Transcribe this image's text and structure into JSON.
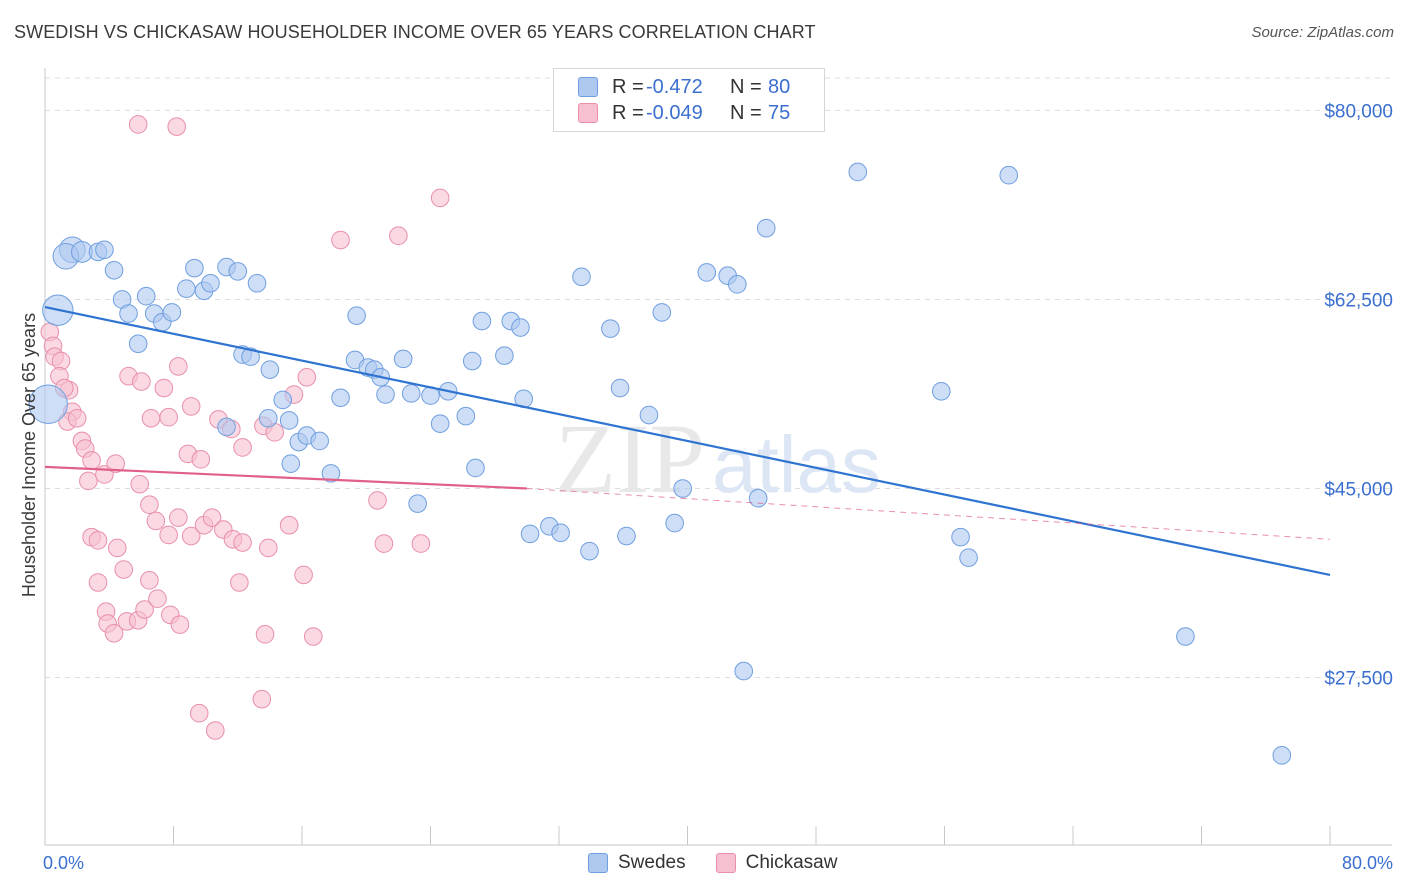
{
  "header": {
    "title": "SWEDISH VS CHICKASAW HOUSEHOLDER INCOME OVER 65 YEARS CORRELATION CHART",
    "source": "Source: ZipAtlas.com"
  },
  "watermark": {
    "part1": "ZIP",
    "part2": "atlas"
  },
  "legend": {
    "rows": [
      {
        "r_label": "R =",
        "r_value": "-0.472",
        "n_label": "N =",
        "n_value": "80"
      },
      {
        "r_label": "R =",
        "r_value": "-0.049",
        "n_label": "N =",
        "n_value": "75"
      }
    ],
    "series": [
      {
        "label": "Swedes"
      },
      {
        "label": "Chickasaw"
      }
    ]
  },
  "colors": {
    "blue_fill": "#aec8f0",
    "blue_stroke": "#6f9fe0",
    "blue_line": "#2f74d0",
    "pink_fill": "#f6c0d0",
    "pink_stroke": "#e98fab",
    "pink_line": "#e0608a",
    "axis_text": "#3a6fd0",
    "grid": "#dddddd"
  },
  "chart_data": {
    "type": "scatter",
    "title": "SWEDISH VS CHICKASAW HOUSEHOLDER INCOME OVER 65 YEARS CORRELATION CHART",
    "xlabel": "",
    "ylabel": "Householder Income Over 65 years",
    "xlim": [
      0,
      80
    ],
    "ylim": [
      12000,
      83000
    ],
    "x_tick_labels": [
      "0.0%",
      "80.0%"
    ],
    "y_ticks": [
      27500,
      45000,
      62500,
      80000
    ],
    "y_tick_labels": [
      "$27,500",
      "$45,000",
      "$62,500",
      "$80,000"
    ],
    "series": [
      {
        "name": "Swedes",
        "r": -0.472,
        "n": 80,
        "trend": {
          "x": [
            0,
            80
          ],
          "y": [
            61800,
            37000
          ]
        },
        "points": [
          [
            1.7,
            67100,
            1.6
          ],
          [
            1.3,
            66500,
            1.6
          ],
          [
            2.3,
            66900,
            1.3
          ],
          [
            3.3,
            66900,
            1.1
          ],
          [
            3.7,
            67100,
            1.1
          ],
          [
            4.3,
            65200,
            1.1
          ],
          [
            0.8,
            61500,
            1.9
          ],
          [
            0.2,
            52800,
            2.4
          ],
          [
            4.8,
            62500,
            1.1
          ],
          [
            5.2,
            61200,
            1.1
          ],
          [
            6.3,
            62800,
            1.1
          ],
          [
            6.8,
            61200,
            1.1
          ],
          [
            7.3,
            60400,
            1.1
          ],
          [
            7.9,
            61300,
            1.1
          ],
          [
            8.8,
            63500,
            1.1
          ],
          [
            9.3,
            65400,
            1.1
          ],
          [
            9.9,
            63300,
            1.1
          ],
          [
            10.3,
            64000,
            1.1
          ],
          [
            11.3,
            65500,
            1.1
          ],
          [
            12.0,
            65100,
            1.1
          ],
          [
            13.2,
            64000,
            1.1
          ],
          [
            5.8,
            58400,
            1.1
          ],
          [
            12.3,
            57400,
            1.1
          ],
          [
            12.8,
            57200,
            1.1
          ],
          [
            14.0,
            56000,
            1.1
          ],
          [
            14.8,
            53200,
            1.1
          ],
          [
            15.2,
            51300,
            1.1
          ],
          [
            15.8,
            49300,
            1.1
          ],
          [
            16.3,
            49900,
            1.1
          ],
          [
            17.1,
            49400,
            1.1
          ],
          [
            15.3,
            47300,
            1.1
          ],
          [
            11.3,
            50700,
            1.1
          ],
          [
            13.9,
            51500,
            1.1
          ],
          [
            17.8,
            46400,
            1.1
          ],
          [
            18.4,
            53400,
            1.1
          ],
          [
            19.3,
            56900,
            1.1
          ],
          [
            20.1,
            56200,
            1.1
          ],
          [
            20.5,
            56000,
            1.1
          ],
          [
            19.4,
            61000,
            1.1
          ],
          [
            20.9,
            55300,
            1.1
          ],
          [
            21.2,
            53700,
            1.1
          ],
          [
            22.3,
            57000,
            1.1
          ],
          [
            22.8,
            53800,
            1.1
          ],
          [
            23.2,
            43600,
            1.1
          ],
          [
            24.0,
            53600,
            1.1
          ],
          [
            24.6,
            51000,
            1.1
          ],
          [
            25.1,
            54000,
            1.1
          ],
          [
            26.2,
            51700,
            1.1
          ],
          [
            26.6,
            56800,
            1.1
          ],
          [
            27.2,
            60500,
            1.1
          ],
          [
            28.6,
            57300,
            1.1
          ],
          [
            29.0,
            60500,
            1.1
          ],
          [
            29.6,
            59900,
            1.1
          ],
          [
            29.8,
            53300,
            1.1
          ],
          [
            30.2,
            40800,
            1.1
          ],
          [
            31.4,
            41500,
            1.1
          ],
          [
            32.1,
            40900,
            1.1
          ],
          [
            33.4,
            64600,
            1.1
          ],
          [
            33.9,
            39200,
            1.1
          ],
          [
            35.2,
            59800,
            1.1
          ],
          [
            35.8,
            54300,
            1.1
          ],
          [
            36.2,
            40600,
            1.1
          ],
          [
            37.6,
            51800,
            1.1
          ],
          [
            38.4,
            61300,
            1.1
          ],
          [
            39.2,
            41800,
            1.1
          ],
          [
            39.7,
            45000,
            1.1
          ],
          [
            41.2,
            65000,
            1.1
          ],
          [
            42.5,
            64700,
            1.1
          ],
          [
            43.1,
            63900,
            1.1
          ],
          [
            43.5,
            28100,
            1.1
          ],
          [
            44.4,
            44100,
            1.1
          ],
          [
            44.9,
            69100,
            1.1
          ],
          [
            50.6,
            74300,
            1.1
          ],
          [
            55.8,
            54000,
            1.1
          ],
          [
            57.0,
            40500,
            1.1
          ],
          [
            57.5,
            38600,
            1.1
          ],
          [
            60.0,
            74000,
            1.1
          ],
          [
            71.0,
            31300,
            1.1
          ],
          [
            77.0,
            20300,
            1.1
          ],
          [
            26.8,
            46900,
            1.1
          ]
        ]
      },
      {
        "name": "Chickasaw",
        "r": -0.049,
        "n": 75,
        "trend": {
          "x": [
            0,
            30
          ],
          "y": [
            47000,
            45000
          ]
        },
        "trend_extension": {
          "x": [
            30,
            80
          ],
          "y": [
            45000,
            40300
          ]
        },
        "points": [
          [
            5.8,
            78700,
            1.1
          ],
          [
            8.2,
            78500,
            1.1
          ],
          [
            0.3,
            59500,
            1.1
          ],
          [
            0.5,
            58200,
            1.1
          ],
          [
            0.6,
            57200,
            1.1
          ],
          [
            1.0,
            56800,
            1.1
          ],
          [
            0.9,
            55400,
            1.1
          ],
          [
            1.5,
            54100,
            1.1
          ],
          [
            1.2,
            54300,
            1.1
          ],
          [
            1.7,
            52100,
            1.1
          ],
          [
            1.4,
            51200,
            1.1
          ],
          [
            2.0,
            51500,
            1.1
          ],
          [
            2.3,
            49400,
            1.1
          ],
          [
            2.5,
            48700,
            1.1
          ],
          [
            2.9,
            47600,
            1.1
          ],
          [
            2.7,
            45700,
            1.1
          ],
          [
            3.7,
            46300,
            1.1
          ],
          [
            4.4,
            47300,
            1.1
          ],
          [
            5.2,
            55400,
            1.1
          ],
          [
            6.0,
            54900,
            1.1
          ],
          [
            6.6,
            51500,
            1.1
          ],
          [
            7.4,
            54300,
            1.1
          ],
          [
            7.7,
            51600,
            1.1
          ],
          [
            8.3,
            56300,
            1.1
          ],
          [
            9.1,
            52600,
            1.1
          ],
          [
            8.9,
            48200,
            1.1
          ],
          [
            9.7,
            47700,
            1.1
          ],
          [
            10.8,
            51400,
            1.1
          ],
          [
            11.6,
            50500,
            1.1
          ],
          [
            12.3,
            48800,
            1.1
          ],
          [
            13.6,
            50800,
            1.1
          ],
          [
            14.3,
            50200,
            1.1
          ],
          [
            15.5,
            53700,
            1.1
          ],
          [
            16.3,
            55300,
            1.1
          ],
          [
            5.9,
            45400,
            1.1
          ],
          [
            6.5,
            43500,
            1.1
          ],
          [
            6.9,
            42000,
            1.1
          ],
          [
            7.7,
            40700,
            1.1
          ],
          [
            8.3,
            42300,
            1.1
          ],
          [
            9.1,
            40600,
            1.1
          ],
          [
            9.9,
            41600,
            1.1
          ],
          [
            10.4,
            42300,
            1.1
          ],
          [
            11.1,
            41200,
            1.1
          ],
          [
            11.7,
            40300,
            1.1
          ],
          [
            12.3,
            40000,
            1.1
          ],
          [
            13.9,
            39500,
            1.1
          ],
          [
            15.2,
            41600,
            1.1
          ],
          [
            16.1,
            37000,
            1.1
          ],
          [
            18.4,
            68000,
            1.1
          ],
          [
            22.0,
            68400,
            1.1
          ],
          [
            24.6,
            71900,
            1.1
          ],
          [
            2.9,
            40500,
            1.1
          ],
          [
            3.3,
            40200,
            1.1
          ],
          [
            3.3,
            36300,
            1.1
          ],
          [
            4.5,
            39500,
            1.1
          ],
          [
            4.9,
            37500,
            1.1
          ],
          [
            3.8,
            33600,
            1.1
          ],
          [
            3.9,
            32500,
            1.1
          ],
          [
            4.3,
            31600,
            1.1
          ],
          [
            5.1,
            32700,
            1.1
          ],
          [
            5.8,
            32800,
            1.1
          ],
          [
            6.2,
            33800,
            1.1
          ],
          [
            6.5,
            36500,
            1.1
          ],
          [
            7.8,
            33300,
            1.1
          ],
          [
            7.0,
            34800,
            1.1
          ],
          [
            8.4,
            32400,
            1.1
          ],
          [
            9.6,
            24200,
            1.1
          ],
          [
            10.6,
            22600,
            1.1
          ],
          [
            12.1,
            36300,
            1.1
          ],
          [
            13.5,
            25500,
            1.1
          ],
          [
            13.7,
            31500,
            1.1
          ],
          [
            16.7,
            31300,
            1.1
          ],
          [
            20.7,
            43900,
            1.1
          ],
          [
            21.1,
            39900,
            1.1
          ],
          [
            23.4,
            39900,
            1.1
          ]
        ]
      }
    ]
  }
}
